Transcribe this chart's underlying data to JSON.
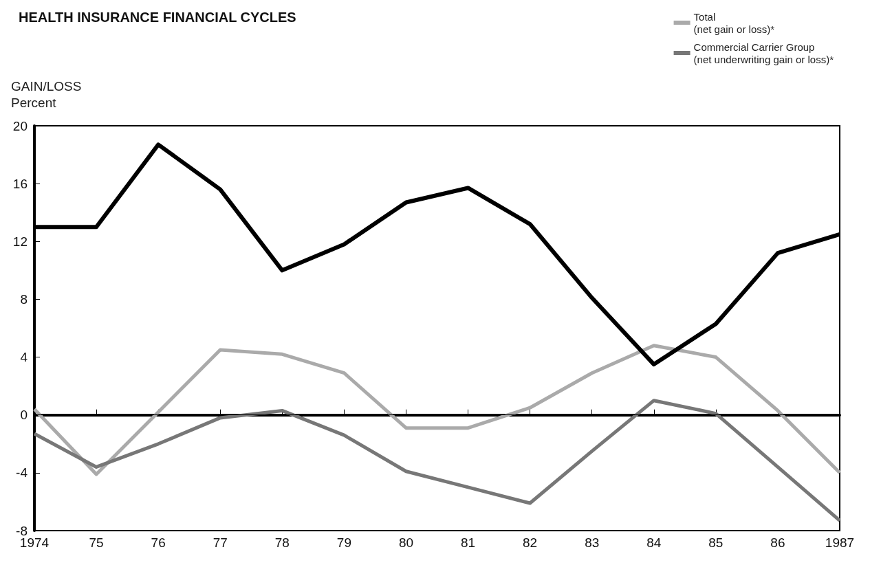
{
  "chart_data": {
    "type": "line",
    "title": "HEALTH INSURANCE FINANCIAL CYCLES",
    "ylabel": "GAIN/LOSS\nPercent",
    "x": [
      1974,
      1975,
      1976,
      1977,
      1978,
      1979,
      1980,
      1981,
      1982,
      1983,
      1984,
      1985,
      1986,
      1987
    ],
    "series": [
      {
        "name": "Total\n(net gain or loss)*",
        "color": "#aaaaaa",
        "values": [
          0.4,
          -4.1,
          0.2,
          4.5,
          4.2,
          2.9,
          -0.9,
          -0.9,
          0.5,
          2.9,
          4.8,
          4.0,
          0.3,
          -4.0
        ]
      },
      {
        "name": "Commercial Carrier Group\n(net underwriting gain or loss)*",
        "color": "#777777",
        "values": [
          -1.3,
          -3.6,
          -2.0,
          -0.2,
          0.3,
          -1.4,
          -3.9,
          -5.0,
          -6.1,
          -2.5,
          1.0,
          0.1,
          -3.6,
          -7.3
        ]
      },
      {
        "color": "#000000",
        "values": [
          13,
          13,
          18.7,
          15.6,
          10,
          11.8,
          14.7,
          15.7,
          13.2,
          8.1,
          3.5,
          6.3,
          11.2,
          12.5
        ]
      }
    ],
    "xlim": [
      1974,
      1987
    ],
    "xticks": [
      1974,
      {
        "value": 1975,
        "label": "75"
      },
      {
        "value": 1976,
        "label": "76"
      },
      {
        "value": 1977,
        "label": "77"
      },
      {
        "value": 1978,
        "label": "78"
      },
      {
        "value": 1979,
        "label": "79"
      },
      {
        "value": 1980,
        "label": "80"
      },
      {
        "value": 1981,
        "label": "81"
      },
      {
        "value": 1982,
        "label": "82"
      },
      {
        "value": 1983,
        "label": "83"
      },
      {
        "value": 1984,
        "label": "84"
      },
      {
        "value": 1985,
        "label": "85"
      },
      {
        "value": 1986,
        "label": "86"
      },
      1987
    ],
    "ylim": [
      -8,
      20
    ],
    "yticks": [
      -8,
      -4,
      0,
      4,
      8,
      12,
      16,
      20
    ],
    "ref_lines": [
      {
        "axis": "y",
        "value": 0,
        "color": "#000000"
      }
    ],
    "grid": false,
    "legend": "top right",
    "marker": "none",
    "line_style": "solid"
  }
}
